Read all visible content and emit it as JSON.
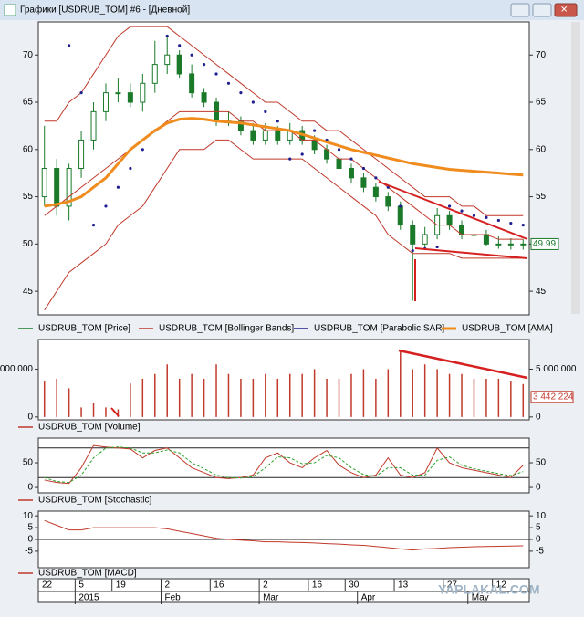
{
  "window": {
    "title": "Графики [USDRUB_TOM] #6 - [Дневной]"
  },
  "watermark": "YAPLAKAL.COM",
  "x_axis": {
    "days": [
      "22",
      null,
      null,
      "5",
      null,
      null,
      "19",
      null,
      null,
      null,
      "2",
      null,
      null,
      null,
      "16",
      null,
      null,
      null,
      "2",
      null,
      null,
      null,
      "16",
      null,
      null,
      "30",
      null,
      null,
      null,
      "13",
      null,
      null,
      null,
      "27",
      null,
      null,
      null,
      "12",
      null,
      null
    ],
    "months": [
      null,
      null,
      null,
      "2015",
      null,
      null,
      null,
      null,
      null,
      null,
      "Feb",
      null,
      null,
      null,
      null,
      null,
      null,
      null,
      "Mar",
      null,
      null,
      null,
      null,
      null,
      null,
      null,
      "Apr",
      null,
      null,
      null,
      null,
      null,
      null,
      null,
      null,
      "May",
      null,
      null,
      null,
      null
    ]
  },
  "chart_data": [
    {
      "type": "candlestick",
      "ylim": [
        42.5,
        73.5
      ],
      "yticks": [
        45,
        50,
        55,
        60,
        65,
        70
      ],
      "series": [
        {
          "name": "USDRUB_TOM [Price]",
          "color": "#1a7a2a",
          "kind": "ohlc",
          "open": [
            55,
            58,
            54,
            58,
            61,
            64,
            66,
            66,
            65,
            67,
            69,
            70,
            68,
            66,
            65,
            63,
            63,
            62,
            61,
            62,
            61,
            62,
            61,
            60,
            59,
            58,
            57,
            56,
            55,
            54,
            52,
            50,
            51,
            53,
            52,
            51,
            51,
            50,
            50,
            50
          ],
          "high": [
            62.5,
            59,
            58.5,
            62,
            65,
            67,
            67.5,
            67,
            68,
            71.5,
            72,
            70.5,
            69,
            66.5,
            65.5,
            64,
            63.5,
            62.8,
            62.8,
            62.5,
            62.8,
            62.5,
            61.5,
            60.5,
            59.5,
            58.5,
            57.5,
            56.5,
            55.5,
            54.5,
            52.5,
            51.8,
            53.8,
            53.5,
            52.5,
            51.8,
            51.5,
            50.8,
            50.6,
            50.5
          ],
          "low": [
            54,
            53,
            52.5,
            57,
            60,
            63,
            65,
            64.5,
            64,
            66,
            68,
            67.5,
            65.5,
            64.5,
            62.5,
            62.5,
            61.5,
            60.5,
            60.5,
            60.5,
            60.5,
            60.5,
            59.5,
            58.5,
            57.5,
            56.5,
            55.5,
            54.5,
            53.5,
            51.5,
            44,
            49.5,
            50.5,
            51.5,
            50.5,
            50.5,
            49.8,
            49.5,
            49.4,
            49.4
          ],
          "close": [
            58,
            54,
            58,
            61,
            64,
            66,
            66,
            65,
            67,
            69,
            70,
            68,
            66,
            65,
            63,
            63,
            62,
            61,
            62,
            61,
            62,
            61,
            60,
            59,
            58,
            57,
            56,
            55,
            54,
            52,
            50,
            51,
            53,
            52,
            51,
            51,
            50,
            50,
            50,
            49.99
          ]
        },
        {
          "name": "USDRUB_TOM [Bollinger Bands]",
          "color": "#c0392b",
          "kind": "bands",
          "upper": [
            63,
            63,
            65,
            66,
            68,
            70,
            72,
            73,
            73,
            73,
            73,
            72,
            71,
            70,
            69,
            68,
            67,
            66,
            65,
            65,
            64,
            63,
            63,
            62,
            62,
            61,
            60,
            59,
            58,
            57,
            56,
            55,
            55,
            55,
            54,
            54,
            53,
            53,
            53,
            53
          ],
          "middle": [
            53,
            54,
            55,
            56,
            57,
            58,
            59,
            60,
            61,
            62,
            63,
            64,
            64,
            64,
            64,
            64,
            63,
            63,
            62,
            62,
            62,
            61,
            61,
            60,
            59,
            59,
            58,
            57,
            56,
            55,
            54,
            53,
            52,
            52,
            51,
            51,
            51,
            50.5,
            50.5,
            50.5
          ],
          "lower": [
            43,
            45,
            47,
            48,
            49,
            50,
            52,
            53,
            54,
            56,
            58,
            60,
            60,
            60,
            61,
            61,
            60,
            59,
            59,
            59,
            59,
            59,
            58,
            57,
            56,
            55,
            54,
            53,
            51,
            50,
            49,
            49,
            49,
            49,
            48.5,
            48.5,
            48.5,
            48.5,
            48.5,
            48.5
          ]
        },
        {
          "name": "USDRUB_TOM [Parabolic SAR]",
          "color": "#1f1f8f",
          "kind": "dots",
          "values": [
            null,
            null,
            71,
            66,
            52,
            54,
            56,
            58,
            60,
            62,
            72,
            71,
            70,
            69,
            68,
            67,
            66,
            65,
            64,
            63,
            59,
            59.5,
            62,
            61,
            60,
            59,
            58,
            57,
            56,
            54,
            49.3,
            49.5,
            49.7,
            54,
            53.5,
            53,
            52.8,
            52.5,
            52.2,
            52
          ]
        },
        {
          "name": "USDRUB_TOM [AMA]",
          "color": "#f08c1e",
          "kind": "line",
          "values": [
            54,
            54.2,
            54.5,
            55,
            56,
            57,
            58.5,
            60,
            61,
            62,
            62.8,
            63.2,
            63.3,
            63.2,
            63,
            62.9,
            62.8,
            62.6,
            62.4,
            62.2,
            62,
            61.6,
            61.2,
            60.8,
            60.4,
            60,
            59.7,
            59.4,
            59.1,
            58.8,
            58.5,
            58.3,
            58.1,
            57.9,
            57.8,
            57.7,
            57.6,
            57.5,
            57.4,
            57.3
          ]
        }
      ]
    },
    {
      "type": "bar",
      "ylim": [
        -300000,
        8100000
      ],
      "yticks": [
        0,
        {
          "value": 5000000,
          "label": "5 000 000"
        }
      ],
      "series": [
        {
          "name": "USDRUB_TOM [Volume]",
          "color": "#c0392b",
          "values": [
            3800000,
            4000000,
            3000000,
            1000000,
            1500000,
            1000000,
            800000,
            3500000,
            4000000,
            4500000,
            5500000,
            4000000,
            4500000,
            4000000,
            5500000,
            4500000,
            4000000,
            4000000,
            4500000,
            4000000,
            4500000,
            4500000,
            5000000,
            4000000,
            4000000,
            4500000,
            5000000,
            4000000,
            5000000,
            7000000,
            5000000,
            5500000,
            5000000,
            4500000,
            4500000,
            4000000,
            4000000,
            4000000,
            3800000,
            3442224
          ],
          "value_labels": [
            null,
            null,
            null,
            null,
            null,
            null,
            null,
            null,
            null,
            null,
            null,
            null,
            null,
            null,
            null,
            null,
            null,
            null,
            null,
            null,
            null,
            null,
            null,
            null,
            null,
            null,
            null,
            null,
            null,
            null,
            null,
            null,
            null,
            null,
            null,
            null,
            null,
            null,
            null,
            "3 442 224"
          ]
        }
      ]
    },
    {
      "type": "line",
      "ylim": [
        -11,
        100
      ],
      "yticks": [
        0,
        50
      ],
      "levels": [
        20,
        80
      ],
      "series": [
        {
          "name": "USDRUB_TOM [Stochastic]",
          "color": "#c0392b",
          "values": [
            15,
            10,
            8,
            40,
            85,
            82,
            80,
            78,
            60,
            75,
            80,
            60,
            40,
            30,
            20,
            18,
            20,
            25,
            60,
            70,
            50,
            40,
            60,
            75,
            45,
            30,
            20,
            25,
            60,
            25,
            20,
            30,
            80,
            50,
            40,
            35,
            30,
            25,
            20,
            45
          ]
        },
        {
          "color": "#2ca02c",
          "dash": true,
          "values": [
            20,
            12,
            10,
            25,
            60,
            80,
            82,
            80,
            70,
            70,
            76,
            70,
            50,
            38,
            25,
            20,
            19,
            22,
            40,
            62,
            60,
            48,
            50,
            65,
            60,
            40,
            26,
            23,
            40,
            40,
            25,
            25,
            55,
            62,
            45,
            38,
            33,
            28,
            24,
            32
          ]
        }
      ]
    },
    {
      "type": "line",
      "ylim": [
        -12,
        12
      ],
      "yticks": [
        10,
        5,
        0,
        -5
      ],
      "levels": [
        0
      ],
      "series": [
        {
          "name": "USDRUB_TOM [MACD]",
          "color": "#c0392b",
          "values": [
            8,
            6,
            4,
            4,
            5,
            5,
            5,
            5,
            5,
            5,
            4.5,
            3.5,
            2.5,
            1.5,
            0.5,
            0,
            -0.3,
            -0.6,
            -1,
            -1,
            -1.2,
            -1.3,
            -1.5,
            -1.8,
            -2,
            -2.3,
            -2.5,
            -3,
            -3.5,
            -4,
            -4.5,
            -4,
            -3.8,
            -3.5,
            -3.3,
            -3.1,
            -3,
            -2.9,
            -2.8,
            -2.7
          ]
        }
      ]
    }
  ]
}
